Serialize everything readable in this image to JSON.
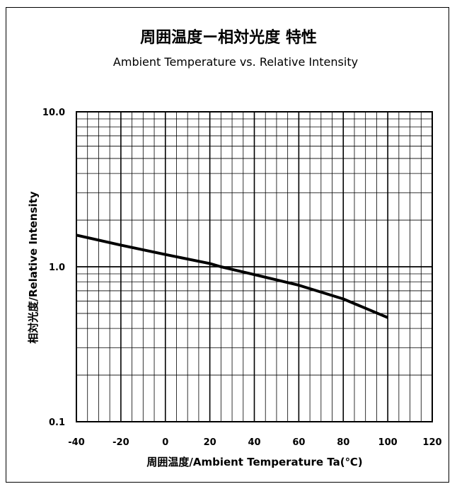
{
  "chart_data": {
    "type": "line",
    "title": "周囲温度ー相対光度 特性",
    "subtitle": "Ambient Temperature vs. Relative Intensity",
    "xlabel": "周囲温度/Ambient Temperature Ta(℃)",
    "ylabel": "相対光度/Relative Intensity",
    "xlim": [
      -40,
      120
    ],
    "ylim": [
      0.1,
      10.0
    ],
    "yscale": "log",
    "grid": true,
    "x_ticks": [
      "-40",
      "-20",
      "0",
      "20",
      "40",
      "60",
      "80",
      "100",
      "120"
    ],
    "y_ticks": [
      "10.0",
      "1.0",
      "0.1"
    ],
    "series": [
      {
        "x": [
          -40,
          -20,
          0,
          20,
          25,
          40,
          60,
          80,
          100
        ],
        "y": [
          1.6,
          1.38,
          1.2,
          1.05,
          1.0,
          0.89,
          0.76,
          0.62,
          0.47
        ],
        "color": "#000000"
      }
    ]
  }
}
